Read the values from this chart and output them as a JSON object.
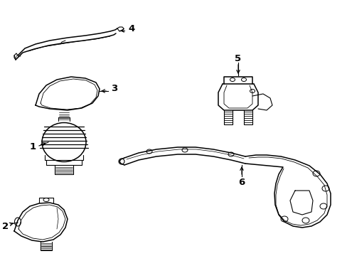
{
  "background_color": "#ffffff",
  "figsize": [
    4.89,
    3.6
  ],
  "dpi": 100,
  "text_color": "#000000",
  "line_color": "#000000"
}
